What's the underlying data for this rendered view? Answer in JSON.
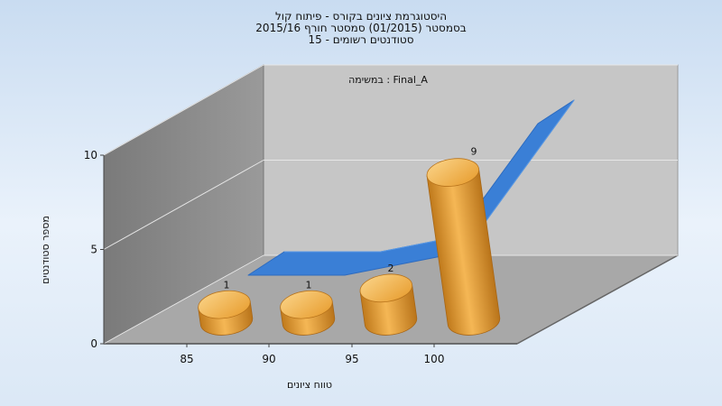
{
  "title_lines": [
    "היסטוגרמת ציונים בקורס - פיתוח קול",
    "בסמסטר  (01/2015)  סמסטר חורף 2015/16",
    "סטודנטים רשומים - 15"
  ],
  "chart_data": {
    "type": "bar",
    "subtitle": "במשימה : Final_A",
    "categories": [
      "85",
      "90",
      "95",
      "100"
    ],
    "values": [
      1,
      1,
      2,
      9
    ],
    "xlabel": "טווח ציונים",
    "ylabel": "מספר סטודנטים",
    "ylim": [
      0,
      10
    ],
    "yticks": [
      0,
      5,
      10
    ],
    "trend_line": [
      1,
      1,
      2,
      9
    ],
    "grid": true,
    "colors": {
      "bar": "#f1a83a",
      "bar_top": "#f7c469",
      "trend": "#3a7fd6",
      "back_wall": "#c6c6c6",
      "side_wall": "#8c8c8c",
      "floor": "#a8a8a8"
    }
  }
}
